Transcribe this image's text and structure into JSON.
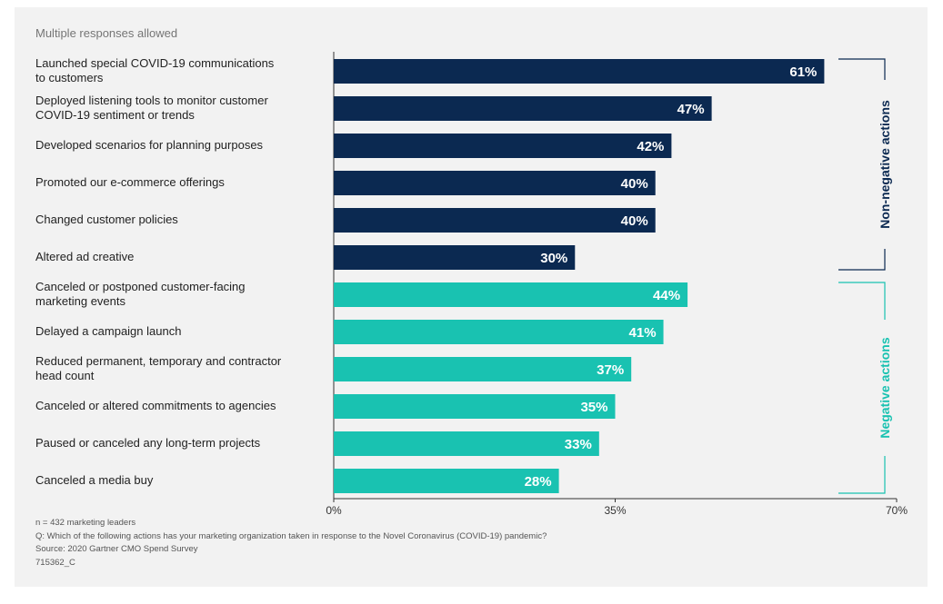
{
  "note": "Multiple responses allowed",
  "chart_data": {
    "type": "bar",
    "orientation": "horizontal",
    "categories": [
      "Launched special COVID-19 communications to customers",
      "Deployed listening tools to monitor customer COVID-19 sentiment or trends",
      "Developed scenarios for planning purposes",
      "Promoted our e-commerce offerings",
      "Changed customer policies",
      "Altered ad creative",
      "Canceled or postponed customer-facing marketing events",
      "Delayed a campaign launch",
      "Reduced permanent, temporary and contractor head count",
      "Canceled or altered commitments to agencies",
      "Paused or canceled any long-term projects",
      "Canceled a media buy"
    ],
    "category_lines": [
      [
        "Launched special COVID-19 communications",
        "to customers"
      ],
      [
        "Deployed listening tools to monitor customer",
        "COVID-19 sentiment or trends"
      ],
      [
        "Developed scenarios for planning purposes"
      ],
      [
        "Promoted our e-commerce offerings"
      ],
      [
        "Changed customer policies"
      ],
      [
        "Altered ad creative"
      ],
      [
        "Canceled or postponed customer-facing",
        "marketing events"
      ],
      [
        "Delayed a campaign launch"
      ],
      [
        "Reduced permanent, temporary and contractor",
        "head count"
      ],
      [
        "Canceled or altered commitments to agencies"
      ],
      [
        "Paused or canceled any long-term projects"
      ],
      [
        "Canceled a media buy"
      ]
    ],
    "values": [
      61,
      47,
      42,
      40,
      40,
      30,
      44,
      41,
      37,
      35,
      33,
      28
    ],
    "value_labels": [
      "61%",
      "47%",
      "42%",
      "40%",
      "40%",
      "30%",
      "44%",
      "41%",
      "37%",
      "35%",
      "33%",
      "28%"
    ],
    "groups": [
      {
        "name": "Non-negative actions",
        "start": 0,
        "end": 5,
        "color": "#0b2951"
      },
      {
        "name": "Negative actions",
        "start": 6,
        "end": 11,
        "color": "#19c2b1"
      }
    ],
    "xlim": [
      0,
      70
    ],
    "xticks": [
      0,
      35,
      70
    ],
    "xtick_labels": [
      "0%",
      "35%",
      "70%"
    ],
    "grid": false
  },
  "footer": {
    "n": "n = 432 marketing leaders",
    "question": "Q: Which of the following actions has your marketing organization taken in response to the Novel Coronavirus (COVID-19) pandemic?",
    "source": "Source: 2020 Gartner CMO Spend Survey",
    "id": "715362_C"
  }
}
